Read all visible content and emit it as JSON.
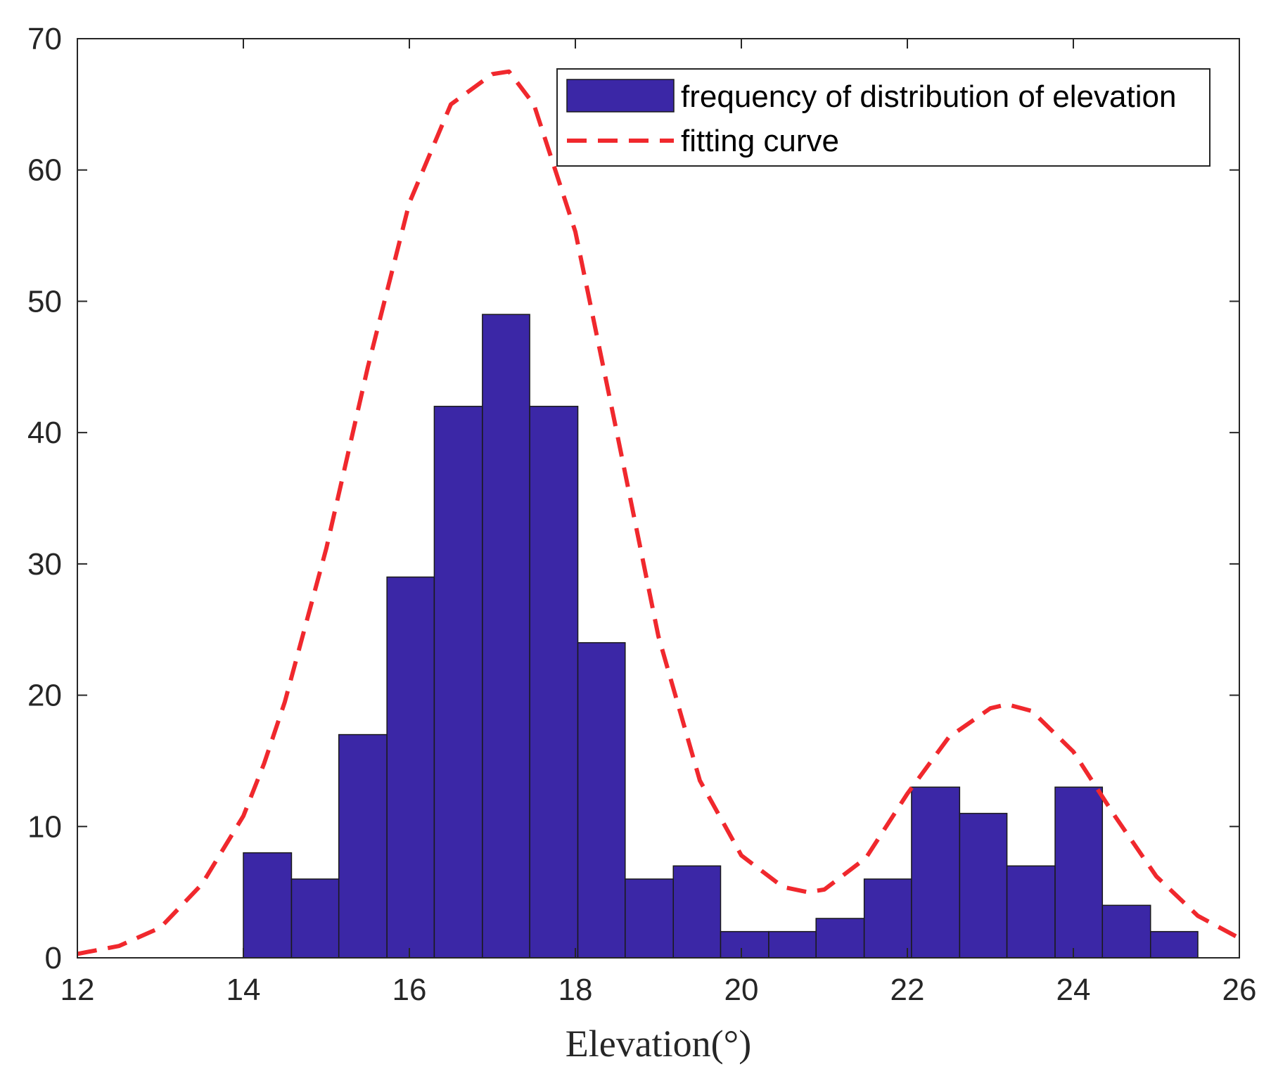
{
  "chart_data": {
    "type": "bar",
    "title": "",
    "xlabel": "Elevation(°)",
    "ylabel": "",
    "xlim": [
      12,
      26
    ],
    "ylim": [
      0,
      70
    ],
    "xticks": [
      12,
      14,
      16,
      18,
      20,
      22,
      24,
      26
    ],
    "yticks": [
      0,
      10,
      20,
      30,
      40,
      50,
      60,
      70
    ],
    "grid": false,
    "legend_position": "top-right",
    "bar_color": "#3b27a6",
    "curve_color": "#f0282d",
    "series": [
      {
        "name": "frequency of distribution of elevation",
        "type": "histogram",
        "bins": [
          {
            "start": 14.0,
            "end": 14.58,
            "value": 8
          },
          {
            "start": 14.58,
            "end": 15.15,
            "value": 6
          },
          {
            "start": 15.15,
            "end": 15.73,
            "value": 17
          },
          {
            "start": 15.73,
            "end": 16.3,
            "value": 29
          },
          {
            "start": 16.3,
            "end": 16.88,
            "value": 42
          },
          {
            "start": 16.88,
            "end": 17.45,
            "value": 49
          },
          {
            "start": 17.45,
            "end": 18.03,
            "value": 42
          },
          {
            "start": 18.03,
            "end": 18.6,
            "value": 24
          },
          {
            "start": 18.6,
            "end": 19.18,
            "value": 6
          },
          {
            "start": 19.18,
            "end": 19.75,
            "value": 7
          },
          {
            "start": 19.75,
            "end": 20.33,
            "value": 2
          },
          {
            "start": 20.33,
            "end": 20.9,
            "value": 2
          },
          {
            "start": 20.9,
            "end": 21.48,
            "value": 3
          },
          {
            "start": 21.48,
            "end": 22.05,
            "value": 6
          },
          {
            "start": 22.05,
            "end": 22.63,
            "value": 13
          },
          {
            "start": 22.63,
            "end": 23.2,
            "value": 11
          },
          {
            "start": 23.2,
            "end": 23.78,
            "value": 7
          },
          {
            "start": 23.78,
            "end": 24.35,
            "value": 13
          },
          {
            "start": 24.35,
            "end": 24.93,
            "value": 4
          },
          {
            "start": 24.93,
            "end": 25.5,
            "value": 2
          }
        ]
      },
      {
        "name": "fitting curve",
        "type": "line",
        "style": "dashed",
        "x": [
          12.0,
          12.5,
          13.0,
          13.5,
          14.0,
          14.25,
          14.5,
          15.0,
          15.5,
          16.0,
          16.5,
          17.0,
          17.2,
          17.5,
          18.0,
          18.5,
          19.0,
          19.5,
          20.0,
          20.5,
          20.8,
          21.0,
          21.5,
          22.0,
          22.5,
          23.0,
          23.2,
          23.5,
          24.0,
          24.5,
          25.0,
          25.5,
          26.0
        ],
        "y": [
          0.3,
          0.9,
          2.3,
          5.6,
          10.8,
          14.8,
          19.5,
          31.2,
          45.0,
          57.5,
          65.0,
          67.3,
          67.5,
          65.0,
          55.3,
          40.0,
          24.5,
          13.5,
          7.8,
          5.4,
          5.0,
          5.2,
          7.6,
          12.5,
          16.8,
          19.0,
          19.3,
          18.8,
          15.7,
          10.8,
          6.2,
          3.2,
          1.5
        ]
      }
    ]
  }
}
